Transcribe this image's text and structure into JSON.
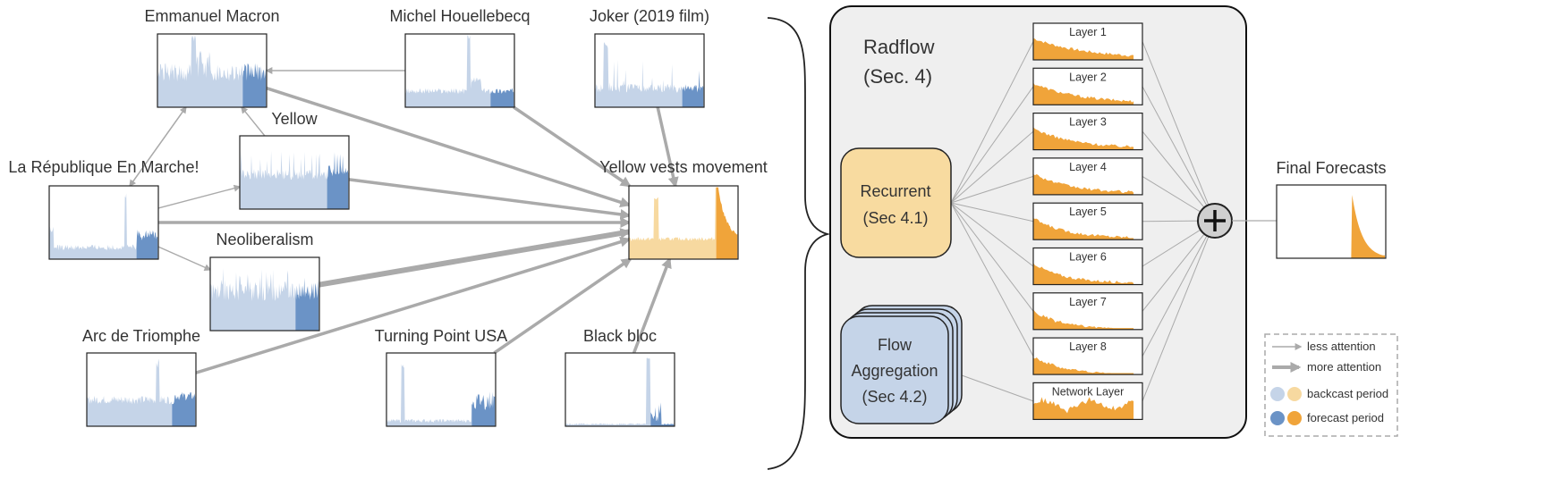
{
  "colors": {
    "backcast": "#c5d4e8",
    "forecast": "#6b93c6",
    "target_backcast": "#f7d9a0",
    "target_forecast": "#f0a43a",
    "layer_fill": "#f0a43a",
    "edge": "#aaaaaa",
    "panel_bg": "#efefef",
    "recurrent_bg": "#f8dba0",
    "flow_bg": "#c5d4e8"
  },
  "graph": {
    "nodes": [
      {
        "id": "macron",
        "label": "Emmanuel Macron",
        "icon": "sparkline-blue-icon"
      },
      {
        "id": "houellebecq",
        "label": "Michel Houellebecq",
        "icon": "sparkline-blue-icon"
      },
      {
        "id": "joker",
        "label": "Joker (2019 film)",
        "icon": "sparkline-blue-icon"
      },
      {
        "id": "yellow",
        "label": "Yellow",
        "icon": "sparkline-blue-icon"
      },
      {
        "id": "republique",
        "label": "La République En Marche!",
        "icon": "sparkline-blue-icon"
      },
      {
        "id": "yellowvests",
        "label": "Yellow vests movement",
        "icon": "sparkline-orange-icon"
      },
      {
        "id": "neoliberalism",
        "label": "Neoliberalism",
        "icon": "sparkline-blue-icon"
      },
      {
        "id": "arc",
        "label": "Arc de Triomphe",
        "icon": "sparkline-blue-icon"
      },
      {
        "id": "turningpoint",
        "label": "Turning Point USA",
        "icon": "sparkline-blue-icon"
      },
      {
        "id": "blackbloc",
        "label": "Black bloc",
        "icon": "sparkline-blue-icon"
      }
    ],
    "edges": [
      {
        "from": "houellebecq",
        "to": "macron",
        "attention": "less"
      },
      {
        "from": "macron",
        "to": "yellowvests",
        "attention": "more"
      },
      {
        "from": "houellebecq",
        "to": "yellowvests",
        "attention": "more"
      },
      {
        "from": "joker",
        "to": "yellowvests",
        "attention": "more"
      },
      {
        "from": "yellow",
        "to": "macron",
        "attention": "less"
      },
      {
        "from": "yellow",
        "to": "yellowvests",
        "attention": "more"
      },
      {
        "from": "republique",
        "to": "macron",
        "attention": "less"
      },
      {
        "from": "macron",
        "to": "republique",
        "attention": "less"
      },
      {
        "from": "republique",
        "to": "yellow",
        "attention": "less"
      },
      {
        "from": "republique",
        "to": "yellowvests",
        "attention": "more"
      },
      {
        "from": "republique",
        "to": "neoliberalism",
        "attention": "less"
      },
      {
        "from": "neoliberalism",
        "to": "yellowvests",
        "attention": "more"
      },
      {
        "from": "arc",
        "to": "yellowvests",
        "attention": "more"
      },
      {
        "from": "turningpoint",
        "to": "yellowvests",
        "attention": "more"
      },
      {
        "from": "blackbloc",
        "to": "yellowvests",
        "attention": "more"
      }
    ]
  },
  "radflow": {
    "title_line1": "Radflow",
    "title_line2": "(Sec. 4)",
    "recurrent_line1": "Recurrent",
    "recurrent_line2": "(Sec 4.1)",
    "flow_line1": "Flow",
    "flow_line2": "Aggregation",
    "flow_line3": "(Sec 4.2)",
    "layers": [
      "Layer 1",
      "Layer 2",
      "Layer 3",
      "Layer 4",
      "Layer 5",
      "Layer 6",
      "Layer 7",
      "Layer 8",
      "Network Layer"
    ],
    "sum_icon": "plus-circle-icon"
  },
  "final_forecasts": "Final Forecasts",
  "legend": {
    "items": [
      {
        "label": "less attention",
        "icon": "thin-arrow-icon"
      },
      {
        "label": "more attention",
        "icon": "thick-arrow-icon"
      },
      {
        "label": "backcast period",
        "icon": "light-dots-icon"
      },
      {
        "label": "forecast period",
        "icon": "dark-dots-icon"
      }
    ]
  }
}
